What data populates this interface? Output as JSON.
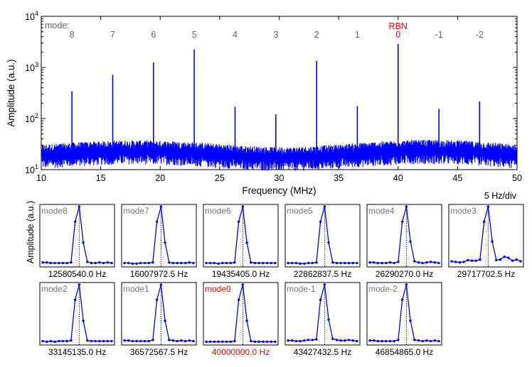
{
  "chart_data": [
    {
      "type": "line",
      "title": "",
      "xlabel": "Frequency (MHz)",
      "ylabel": "Amplitude (a.u.)",
      "xlim": [
        10,
        50
      ],
      "ylim": [
        10,
        10000
      ],
      "yscale": "log",
      "x_ticks": [
        "10",
        "15",
        "20",
        "25",
        "30",
        "35",
        "40",
        "45",
        "50"
      ],
      "y_ticks": [
        {
          "base": "10",
          "exp": "1"
        },
        {
          "base": "10",
          "exp": "2"
        },
        {
          "base": "10",
          "exp": "3"
        },
        {
          "base": "10",
          "exp": "4"
        }
      ],
      "mode_header": "mode:",
      "rbn_label": "RBN",
      "rbn_color": "#ff0000",
      "line_color": "#0000ff",
      "noise_floor": 22,
      "modes": [
        {
          "label": "8",
          "x": 12.58,
          "peak": 340
        },
        {
          "label": "7",
          "x": 16.01,
          "peak": 720
        },
        {
          "label": "6",
          "x": 19.44,
          "peak": 1250
        },
        {
          "label": "5",
          "x": 22.86,
          "peak": 2250
        },
        {
          "label": "4",
          "x": 26.29,
          "peak": 170
        },
        {
          "label": "3",
          "x": 29.72,
          "peak": 120
        },
        {
          "label": "2",
          "x": 33.15,
          "peak": 1350
        },
        {
          "label": "1",
          "x": 36.57,
          "peak": 175
        },
        {
          "label": "0",
          "x": 40.0,
          "peak": 2900
        },
        {
          "label": "-1",
          "x": 43.43,
          "peak": 155
        },
        {
          "label": "-2",
          "x": 46.85,
          "peak": 215
        }
      ]
    },
    {
      "type": "line",
      "ylabel": "Amplitude (a.u.)",
      "scale_label": "5 Hz/div",
      "panels": [
        {
          "mode": "mode8",
          "freq": "12580540.0 Hz",
          "values": [
            0.04,
            0.04,
            0.03,
            0.03,
            0.03,
            0.03,
            0.03,
            0.04,
            0.74,
            1.0,
            0.38,
            0.05,
            0.03,
            0.03,
            0.04,
            0.03,
            0.04,
            0.03
          ]
        },
        {
          "mode": "mode7",
          "freq": "16007972.5 Hz",
          "values": [
            0.03,
            0.03,
            0.02,
            0.02,
            0.03,
            0.03,
            0.03,
            0.04,
            0.74,
            1.0,
            0.38,
            0.04,
            0.03,
            0.03,
            0.03,
            0.03,
            0.04,
            0.03
          ]
        },
        {
          "mode": "mode6",
          "freq": "19435405.0 Hz",
          "values": [
            0.03,
            0.03,
            0.03,
            0.02,
            0.03,
            0.03,
            0.03,
            0.04,
            0.74,
            1.0,
            0.38,
            0.04,
            0.03,
            0.03,
            0.03,
            0.03,
            0.03,
            0.03
          ]
        },
        {
          "mode": "mode5",
          "freq": "22862837.5 Hz",
          "values": [
            0.03,
            0.03,
            0.03,
            0.02,
            0.02,
            0.03,
            0.03,
            0.04,
            0.74,
            1.0,
            0.38,
            0.04,
            0.03,
            0.03,
            0.03,
            0.03,
            0.03,
            0.03
          ]
        },
        {
          "mode": "mode4",
          "freq": "26290270.0 Hz",
          "values": [
            0.04,
            0.04,
            0.03,
            0.03,
            0.03,
            0.04,
            0.03,
            0.05,
            0.74,
            1.0,
            0.4,
            0.06,
            0.04,
            0.03,
            0.04,
            0.05,
            0.04,
            0.03
          ]
        },
        {
          "mode": "mode3",
          "freq": "29717702.5 Hz",
          "values": [
            0.06,
            0.05,
            0.04,
            0.05,
            0.08,
            0.07,
            0.07,
            0.09,
            0.74,
            1.0,
            0.4,
            0.08,
            0.09,
            0.14,
            0.12,
            0.07,
            0.09,
            0.06
          ]
        },
        {
          "mode": "mode2",
          "freq": "33145135.0 Hz",
          "values": [
            0.03,
            0.02,
            0.03,
            0.02,
            0.03,
            0.03,
            0.03,
            0.04,
            0.74,
            1.0,
            0.38,
            0.04,
            0.03,
            0.03,
            0.03,
            0.03,
            0.03,
            0.03
          ]
        },
        {
          "mode": "mode1",
          "freq": "36572567.5 Hz",
          "values": [
            0.04,
            0.04,
            0.03,
            0.03,
            0.03,
            0.03,
            0.03,
            0.05,
            0.74,
            1.0,
            0.38,
            0.05,
            0.04,
            0.03,
            0.04,
            0.03,
            0.04,
            0.03
          ]
        },
        {
          "mode": "mode0",
          "freq": "40000000.0 Hz",
          "highlight": true,
          "values": [
            0.02,
            0.02,
            0.02,
            0.02,
            0.02,
            0.02,
            0.02,
            0.03,
            0.74,
            1.0,
            0.38,
            0.03,
            0.02,
            0.02,
            0.02,
            0.02,
            0.02,
            0.02
          ]
        },
        {
          "mode": "mode-1",
          "freq": "43427432.5 Hz",
          "values": [
            0.04,
            0.04,
            0.03,
            0.03,
            0.04,
            0.05,
            0.05,
            0.06,
            0.74,
            1.0,
            0.4,
            0.07,
            0.05,
            0.04,
            0.04,
            0.05,
            0.04,
            0.03
          ]
        },
        {
          "mode": "mode-2",
          "freq": "46854865.0 Hz",
          "values": [
            0.04,
            0.04,
            0.03,
            0.03,
            0.03,
            0.03,
            0.03,
            0.05,
            0.74,
            1.0,
            0.38,
            0.05,
            0.04,
            0.03,
            0.04,
            0.03,
            0.04,
            0.03
          ]
        }
      ]
    }
  ]
}
